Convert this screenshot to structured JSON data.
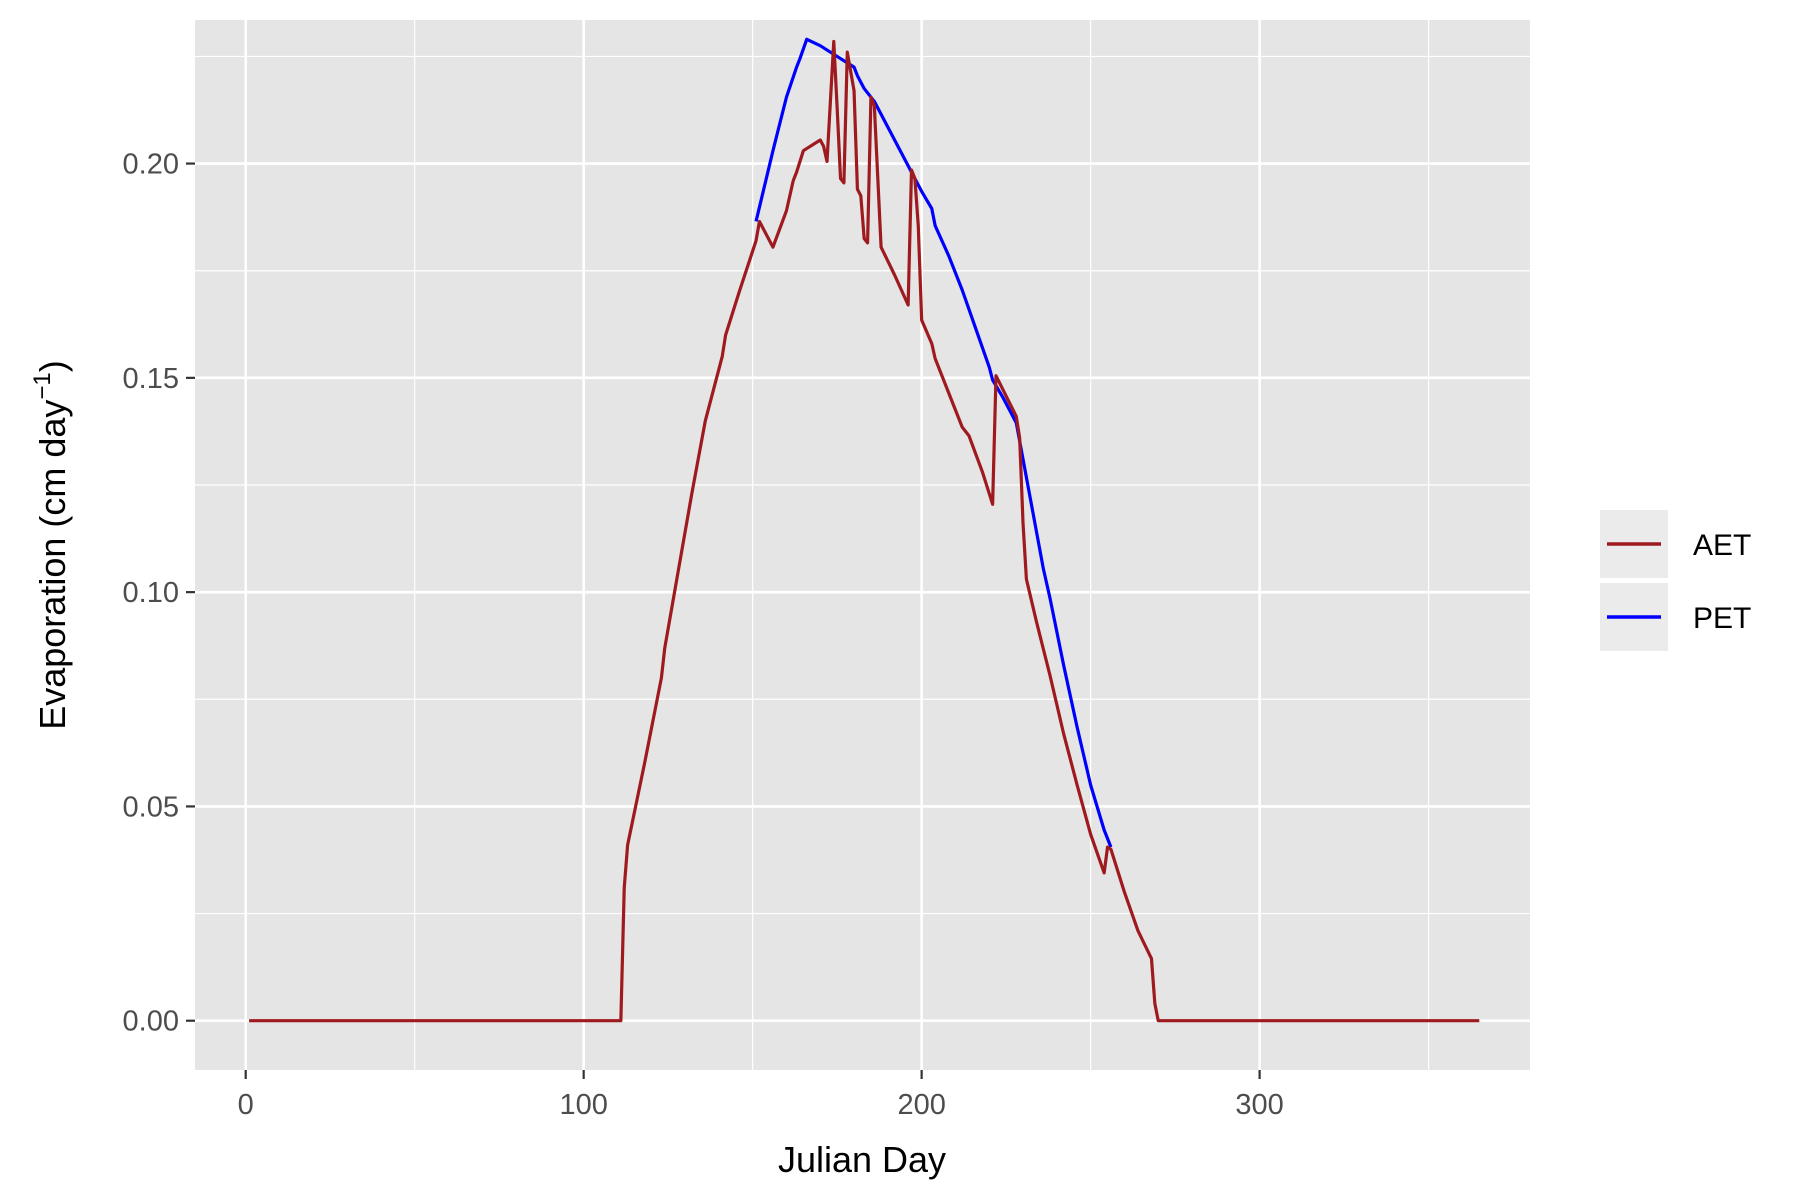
{
  "chart_data": {
    "type": "line",
    "title": "",
    "xlabel": "Julian Day",
    "ylabel": "Evaporation (cm day",
    "ylabel_superscript": "−1",
    "ylabel_close": ")",
    "xlim": [
      -15,
      380
    ],
    "ylim": [
      -0.0115,
      0.2335
    ],
    "x_ticks": [
      0,
      100,
      200,
      300
    ],
    "x_tick_labels": [
      "0",
      "100",
      "200",
      "300"
    ],
    "y_ticks": [
      0,
      0.05,
      0.1,
      0.15,
      0.2
    ],
    "y_tick_labels": [
      "0.00",
      "0.05",
      "0.10",
      "0.15",
      "0.20"
    ],
    "grid": true,
    "legend_position": "right",
    "colors": {
      "panel": "#e5e5e5",
      "grid": "#ffffff",
      "AET": "#9e1a1e",
      "PET": "#0000ff"
    },
    "series": [
      {
        "name": "AET",
        "x": [
          1,
          111,
          112,
          113,
          118,
          123,
          124,
          128,
          132,
          136,
          141,
          142,
          146,
          151,
          152,
          156,
          160,
          162,
          163,
          165,
          170,
          171,
          172,
          174,
          175,
          176,
          177,
          178,
          180,
          181,
          182,
          183,
          184,
          185,
          186,
          188,
          192,
          196,
          197,
          198,
          199,
          200,
          203,
          204,
          208,
          212,
          214,
          218,
          220,
          221,
          222,
          228,
          229,
          230,
          231,
          234,
          238,
          242,
          246,
          250,
          254,
          255,
          256,
          260,
          264,
          268,
          269,
          270,
          365
        ],
        "y": [
          0,
          0,
          0.031,
          0.041,
          0.06,
          0.08,
          0.087,
          0.105,
          0.123,
          0.14,
          0.155,
          0.16,
          0.17,
          0.182,
          0.1865,
          0.1805,
          0.189,
          0.196,
          0.198,
          0.203,
          0.2055,
          0.204,
          0.2005,
          0.2285,
          0.213,
          0.1965,
          0.1955,
          0.226,
          0.217,
          0.194,
          0.1925,
          0.1825,
          0.1815,
          0.2155,
          0.2135,
          0.1805,
          0.174,
          0.167,
          0.1985,
          0.1965,
          0.1855,
          0.1635,
          0.158,
          0.1545,
          0.1465,
          0.1385,
          0.1365,
          0.128,
          0.123,
          0.1205,
          0.1505,
          0.141,
          0.136,
          0.116,
          0.103,
          0.093,
          0.0805,
          0.067,
          0.055,
          0.0435,
          0.0345,
          0.0405,
          0.04,
          0.03,
          0.021,
          0.0145,
          0.004,
          0,
          0
        ]
      },
      {
        "name": "PET",
        "x": [
          151,
          156,
          160,
          163,
          164,
          166,
          170,
          174,
          178,
          180,
          181,
          183,
          186,
          190,
          194,
          198,
          200,
          203,
          204,
          208,
          212,
          216,
          220,
          221,
          224,
          228,
          232,
          236,
          238,
          242,
          246,
          250,
          254,
          256
        ],
        "y": [
          0.1865,
          0.203,
          0.2155,
          0.2225,
          0.2245,
          0.229,
          0.2275,
          0.2255,
          0.2235,
          0.2225,
          0.2205,
          0.2175,
          0.2145,
          0.2085,
          0.2025,
          0.1965,
          0.1935,
          0.1895,
          0.1855,
          0.1785,
          0.1705,
          0.1615,
          0.1525,
          0.1495,
          0.1455,
          0.1395,
          0.1225,
          0.1055,
          0.0985,
          0.083,
          0.0685,
          0.055,
          0.0445,
          0.0405
        ]
      }
    ]
  }
}
